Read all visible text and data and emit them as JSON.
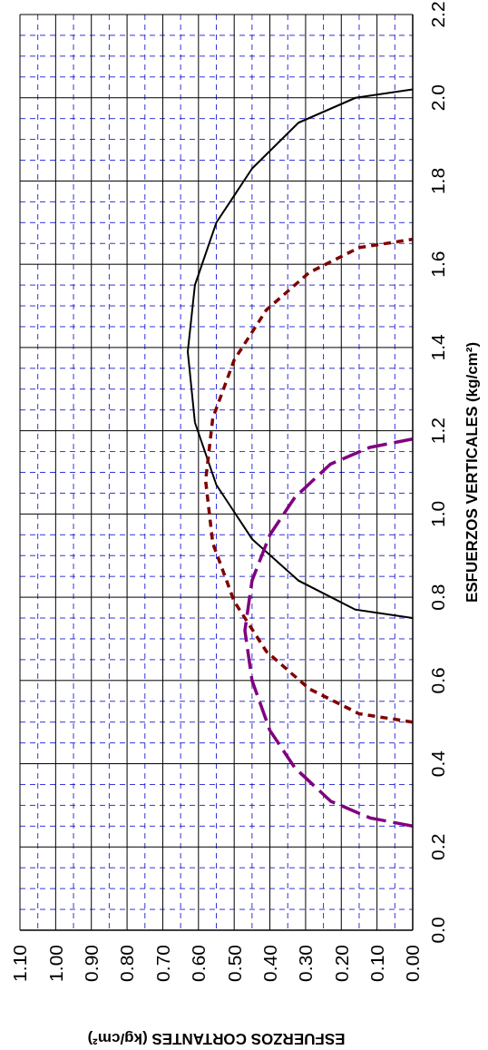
{
  "chart_data": {
    "type": "line",
    "xlabel": "ESFUERZOS CORTANTES (kg/cm²)",
    "ylabel": "ESFUERZOS VERTICALES (kg/cm²)",
    "xlim": [
      1.1,
      0
    ],
    "ylim": [
      0,
      2.2
    ],
    "yticks": [
      {
        "value": 0,
        "label": "0.0"
      },
      {
        "value": 0.05,
        "label": null
      },
      {
        "value": 0.1,
        "label": null
      },
      {
        "value": 0.15,
        "label": null
      },
      0.2,
      {
        "value": 0.25,
        "label": null
      },
      {
        "value": 0.3,
        "label": null
      },
      {
        "value": 0.35,
        "label": null
      },
      0.4,
      {
        "value": 0.45,
        "label": null
      },
      {
        "value": 0.5,
        "label": null
      },
      {
        "value": 0.55,
        "label": null
      },
      0.6,
      {
        "value": 0.65,
        "label": null
      },
      {
        "value": 0.7,
        "label": null
      },
      {
        "value": 0.75,
        "label": null
      },
      0.8,
      {
        "value": 0.85,
        "label": null
      },
      {
        "value": 0.9,
        "label": null
      },
      {
        "value": 0.95,
        "label": null
      },
      {
        "value": 1,
        "label": "1.0"
      },
      {
        "value": 1.05,
        "label": null
      },
      {
        "value": 1.1,
        "label": null
      },
      {
        "value": 1.15,
        "label": null
      },
      1.2,
      {
        "value": 1.25,
        "label": null
      },
      {
        "value": 1.3,
        "label": null
      },
      {
        "value": 1.35,
        "label": null
      },
      1.4,
      {
        "value": 1.45,
        "label": null
      },
      {
        "value": 1.5,
        "label": null
      },
      {
        "value": 1.55,
        "label": null
      },
      1.6,
      {
        "value": 1.65,
        "label": null
      },
      {
        "value": 1.7,
        "label": null
      },
      {
        "value": 1.75,
        "label": null
      },
      1.8,
      {
        "value": 1.85,
        "label": null
      },
      {
        "value": 1.9,
        "label": null
      },
      {
        "value": 1.95,
        "label": null
      },
      {
        "value": 2,
        "label": "2.0"
      },
      {
        "value": 2.05,
        "label": null
      },
      {
        "value": 2.1,
        "label": null
      },
      {
        "value": 2.15,
        "label": null
      },
      2.2
    ],
    "xticks": [
      {
        "value": 0,
        "label": "0.00"
      },
      {
        "value": 0.05,
        "label": null
      },
      {
        "value": 0.1,
        "label": "0.10"
      },
      {
        "value": 0.15,
        "label": null
      },
      {
        "value": 0.2,
        "label": "0.20"
      },
      {
        "value": 0.25,
        "label": null
      },
      {
        "value": 0.3,
        "label": "0.30"
      },
      {
        "value": 0.35,
        "label": null
      },
      {
        "value": 0.4,
        "label": "0.40"
      },
      {
        "value": 0.45,
        "label": null
      },
      {
        "value": 0.5,
        "label": "0.50"
      },
      {
        "value": 0.55,
        "label": null
      },
      {
        "value": 0.6,
        "label": "0.60"
      },
      {
        "value": 0.65,
        "label": null
      },
      {
        "value": 0.7,
        "label": "0.70"
      },
      {
        "value": 0.75,
        "label": null
      },
      {
        "value": 0.8,
        "label": "0.80"
      },
      {
        "value": 0.85,
        "label": null
      },
      {
        "value": 0.9,
        "label": "0.90"
      },
      {
        "value": 0.95,
        "label": null
      },
      {
        "value": 1,
        "label": "1.00"
      },
      {
        "value": 1.05,
        "label": null
      },
      {
        "value": 1.1,
        "label": "1.10"
      }
    ],
    "grid": true,
    "legend": false,
    "marker": "none",
    "series": [
      {
        "color": "#000000",
        "line_style": "solid",
        "values": [
          0.75,
          0.77,
          0.84,
          0.94,
          1.07,
          1.22,
          1.39,
          1.55,
          1.7,
          1.83,
          1.94,
          2.0,
          2.02
        ],
        "x": [
          0,
          0.16,
          0.32,
          0.45,
          0.55,
          0.61,
          0.63,
          0.61,
          0.55,
          0.45,
          0.32,
          0.16,
          0
        ]
      },
      {
        "color": "#800000",
        "line_style": "dashed",
        "values": [
          0.5,
          0.52,
          0.58,
          0.67,
          0.79,
          0.93,
          1.08,
          1.23,
          1.37,
          1.49,
          1.58,
          1.64,
          1.66
        ],
        "x": [
          0,
          0.15,
          0.29,
          0.41,
          0.5,
          0.56,
          0.58,
          0.56,
          0.5,
          0.41,
          0.29,
          0.15,
          0
        ]
      },
      {
        "color": "#800080",
        "line_style": "longdash",
        "values": [
          0.25,
          0.27,
          0.31,
          0.39,
          0.48,
          0.6,
          0.72,
          0.84,
          0.95,
          1.04,
          1.12,
          1.16,
          1.18
        ],
        "x": [
          0,
          0.12,
          0.23,
          0.33,
          0.4,
          0.45,
          0.47,
          0.45,
          0.4,
          0.33,
          0.23,
          0.12,
          0
        ]
      }
    ]
  }
}
